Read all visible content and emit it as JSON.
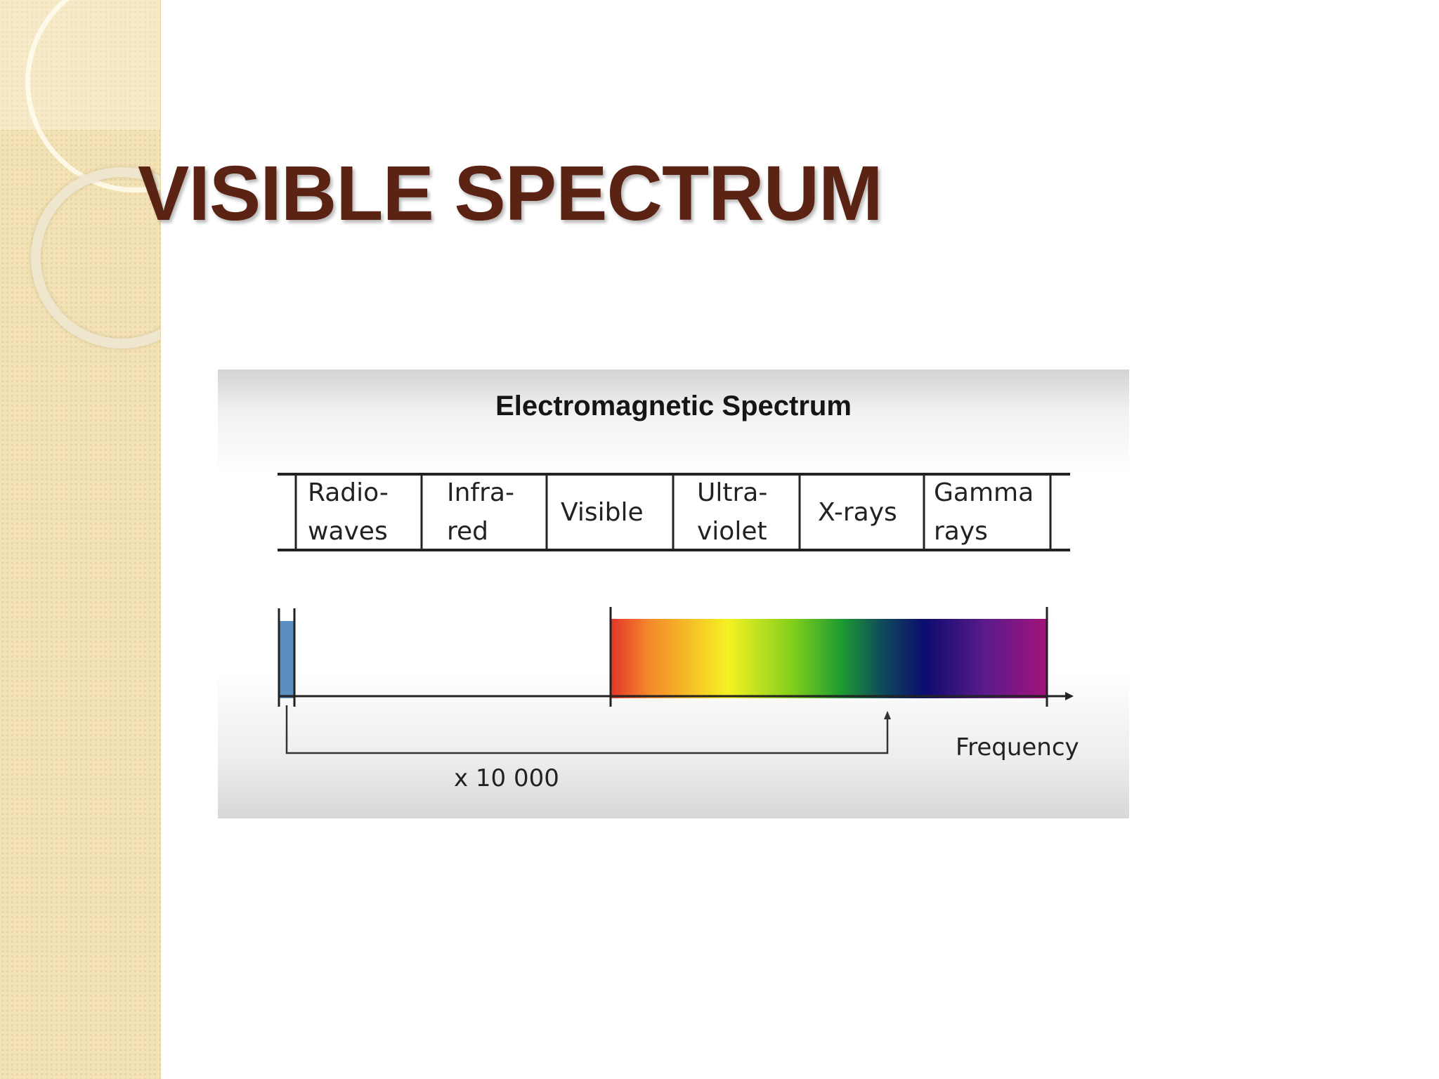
{
  "slide": {
    "title": "VISIBLE SPECTRUM"
  },
  "figure": {
    "title": "Electromagnetic Spectrum",
    "bands": [
      {
        "line1": "Radio-",
        "line2": "waves"
      },
      {
        "line1": "Infra-",
        "line2": "red"
      },
      {
        "line1": "Visible",
        "line2": ""
      },
      {
        "line1": "Ultra-",
        "line2": "violet"
      },
      {
        "line1": "X-rays",
        "line2": ""
      },
      {
        "line1": "Gamma",
        "line2": "rays"
      }
    ],
    "axis_label": "Frequency",
    "multiplier_label": "x  10 000",
    "colors": {
      "radio_band": "#5b8fc2",
      "spectrum_gradient": [
        "#e2352a",
        "#f58a2b",
        "#f5f123",
        "#7fce1c",
        "#1d9a32",
        "#0f4c5a",
        "#0c0c6e",
        "#5c1a8c",
        "#a3137a"
      ],
      "title_color": "#5b2314"
    }
  }
}
